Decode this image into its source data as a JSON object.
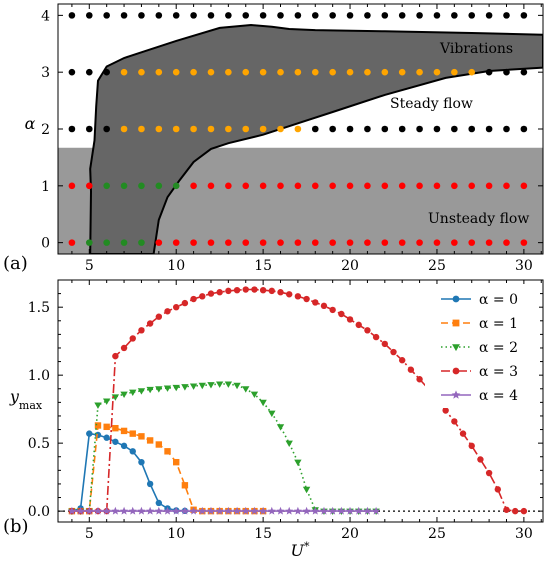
{
  "chart_data": [
    {
      "type": "scatter",
      "panel_label": "(a)",
      "xlim": [
        3.2,
        31.1
      ],
      "ylim": [
        -0.2,
        4.2
      ],
      "xticks": [
        "5",
        "10",
        "15",
        "20",
        "25",
        "30"
      ],
      "yticks": [
        "0",
        "1",
        "2",
        "3",
        "4"
      ],
      "ylabel": "α",
      "annotations": [
        "Vibrations",
        "Steady flow",
        "Unsteady flow"
      ],
      "colors": {
        "vibration_region": "#666666",
        "unsteady_band": "#999999",
        "black_points": "#000000",
        "orange_points": "#ffa500",
        "red_points": "#ff0000",
        "green_points": "#228b22"
      },
      "unsteady_band_alpha_max": 1.67,
      "vibration_boundary": [
        [
          5.05,
          -0.2
        ],
        [
          5.1,
          0.9
        ],
        [
          5.05,
          1.3
        ],
        [
          5.3,
          1.8
        ],
        [
          5.4,
          2.4
        ],
        [
          5.5,
          2.85
        ],
        [
          6.0,
          3.1
        ],
        [
          7.0,
          3.25
        ],
        [
          8.0,
          3.35
        ],
        [
          10.0,
          3.55
        ],
        [
          12.5,
          3.78
        ],
        [
          14.3,
          3.83
        ],
        [
          15.5,
          3.8
        ],
        [
          16.5,
          3.76
        ],
        [
          18.0,
          3.74
        ],
        [
          22.0,
          3.72
        ],
        [
          27.0,
          3.69
        ],
        [
          31.1,
          3.66
        ],
        [
          31.1,
          3.08
        ],
        [
          28.0,
          3.02
        ],
        [
          25.5,
          2.9
        ],
        [
          22.0,
          2.6
        ],
        [
          19.0,
          2.3
        ],
        [
          17.0,
          2.1
        ],
        [
          15.0,
          1.9
        ],
        [
          13.0,
          1.75
        ],
        [
          12.0,
          1.65
        ],
        [
          11.0,
          1.42
        ],
        [
          10.2,
          1.1
        ],
        [
          9.5,
          0.8
        ],
        [
          9.0,
          0.4
        ],
        [
          8.7,
          -0.2
        ]
      ],
      "rows": [
        {
          "alpha": 4,
          "segments": [
            {
              "color": "black",
              "x": [
                4,
                5,
                6,
                7,
                8,
                9,
                10,
                11,
                12,
                13,
                14,
                15,
                16,
                17,
                18,
                19,
                20,
                21,
                22,
                23,
                24,
                25,
                26,
                27,
                28,
                29,
                30
              ]
            }
          ]
        },
        {
          "alpha": 3,
          "segments": [
            {
              "color": "black",
              "x": [
                4,
                5,
                6
              ]
            },
            {
              "color": "orange",
              "x": [
                7,
                8,
                9,
                10,
                11,
                12,
                13,
                14,
                15,
                16,
                17,
                18,
                19,
                20,
                21,
                22,
                23,
                24,
                25,
                26,
                27
              ]
            },
            {
              "color": "black",
              "x": [
                28,
                29,
                30
              ]
            }
          ]
        },
        {
          "alpha": 2,
          "segments": [
            {
              "color": "black",
              "x": [
                4,
                5,
                6
              ]
            },
            {
              "color": "orange",
              "x": [
                7,
                8,
                9,
                10,
                11,
                12,
                13,
                14,
                15,
                16,
                17
              ]
            },
            {
              "color": "black",
              "x": [
                18,
                19,
                20,
                21,
                22,
                23,
                24,
                25,
                26,
                27,
                28,
                29,
                30
              ]
            }
          ]
        },
        {
          "alpha": 1,
          "segments": [
            {
              "color": "red",
              "x": [
                4,
                5
              ]
            },
            {
              "color": "green",
              "x": [
                6,
                7,
                8,
                9,
                10
              ]
            },
            {
              "color": "red",
              "x": [
                11,
                12,
                13,
                14,
                15,
                16,
                17,
                18,
                19,
                20,
                21,
                22,
                23,
                24,
                25,
                26,
                27,
                28,
                29,
                30
              ]
            }
          ]
        },
        {
          "alpha": 0,
          "segments": [
            {
              "color": "red",
              "x": [
                4
              ]
            },
            {
              "color": "green",
              "x": [
                5,
                6,
                7,
                8
              ]
            },
            {
              "color": "red",
              "x": [
                9,
                10,
                11,
                12,
                13,
                14,
                15,
                16,
                17,
                18,
                19,
                20,
                21,
                22,
                23,
                24,
                25,
                26,
                27,
                28,
                29,
                30
              ]
            }
          ]
        }
      ]
    },
    {
      "type": "line",
      "panel_label": "(b)",
      "xlim": [
        3.2,
        31.1
      ],
      "ylim": [
        -0.08,
        1.7
      ],
      "xticks": [
        "5",
        "10",
        "15",
        "20",
        "25",
        "30"
      ],
      "yticks": [
        "0.0",
        "0.5",
        "1.0",
        "1.5"
      ],
      "xlabel": "U*",
      "ylabel": "y_max",
      "legend_position": "top-right",
      "reference_line": {
        "y": 0,
        "style": "dotted",
        "color": "#000000"
      },
      "series": [
        {
          "name": "α = 0",
          "color": "#1f77b4",
          "dash": "",
          "marker": "circle",
          "x": [
            4,
            4.5,
            5,
            5.5,
            6,
            6.5,
            7,
            7.5,
            8,
            8.5,
            9,
            9.5,
            10,
            10.5
          ],
          "y": [
            0,
            0.02,
            0.57,
            0.56,
            0.54,
            0.51,
            0.48,
            0.44,
            0.36,
            0.2,
            0.06,
            0.02,
            0.005,
            0.002
          ]
        },
        {
          "name": "α = 1",
          "color": "#ff7f0e",
          "dash": "7 4",
          "marker": "square",
          "x": [
            4,
            4.5,
            5,
            5.5,
            6,
            6.5,
            7,
            7.5,
            8,
            8.5,
            9,
            9.5,
            10,
            10.5,
            11,
            11.5,
            12,
            12.5,
            13,
            13.5,
            14,
            14.5,
            15
          ],
          "y": [
            0,
            0,
            0,
            0.63,
            0.62,
            0.61,
            0.59,
            0.57,
            0.55,
            0.52,
            0.49,
            0.44,
            0.36,
            0.19,
            0.01,
            0,
            0,
            0,
            0,
            0,
            0,
            0,
            0
          ]
        },
        {
          "name": "α = 2",
          "color": "#2ca02c",
          "dash": "1.5 3",
          "marker": "triangle-down",
          "x": [
            4,
            4.5,
            5,
            5.5,
            6,
            6.5,
            7,
            7.5,
            8,
            8.5,
            9,
            9.5,
            10,
            10.5,
            11,
            11.5,
            12,
            12.5,
            13,
            13.5,
            14,
            14.5,
            15,
            15.5,
            16,
            16.5,
            17,
            17.5,
            18,
            18.5,
            19,
            19.5,
            20,
            20.5,
            21,
            21.5
          ],
          "y": [
            0,
            0,
            0,
            0.78,
            0.81,
            0.84,
            0.86,
            0.875,
            0.885,
            0.895,
            0.9,
            0.905,
            0.91,
            0.915,
            0.92,
            0.925,
            0.93,
            0.935,
            0.935,
            0.925,
            0.9,
            0.86,
            0.8,
            0.72,
            0.62,
            0.5,
            0.36,
            0.16,
            0.01,
            0,
            0,
            0,
            0,
            0,
            0,
            0
          ]
        },
        {
          "name": "α = 3",
          "color": "#d62728",
          "dash": "9 3 2 3",
          "marker": "circle",
          "x": [
            4,
            4.5,
            5,
            5.5,
            6,
            6.5,
            7,
            7.5,
            8,
            8.5,
            9,
            9.5,
            10,
            10.5,
            11,
            11.5,
            12,
            12.5,
            13,
            13.5,
            14,
            14.5,
            15,
            15.5,
            16,
            16.5,
            17,
            17.5,
            18,
            18.5,
            19,
            19.5,
            20,
            20.5,
            21,
            21.5,
            22,
            22.5,
            23,
            23.5,
            24,
            24.5,
            25,
            25.5,
            26,
            26.5,
            27,
            27.5,
            28,
            28.5,
            29,
            29.5,
            30
          ],
          "y": [
            0,
            0,
            0,
            0,
            0,
            1.14,
            1.2,
            1.27,
            1.33,
            1.38,
            1.43,
            1.47,
            1.5,
            1.53,
            1.56,
            1.58,
            1.6,
            1.61,
            1.62,
            1.625,
            1.63,
            1.63,
            1.625,
            1.62,
            1.61,
            1.595,
            1.58,
            1.56,
            1.535,
            1.51,
            1.48,
            1.45,
            1.41,
            1.37,
            1.33,
            1.28,
            1.23,
            1.17,
            1.11,
            1.04,
            0.97,
            0.9,
            0.82,
            0.74,
            0.66,
            0.57,
            0.48,
            0.38,
            0.28,
            0.16,
            0.01,
            0,
            0
          ]
        },
        {
          "name": "α = 4",
          "color": "#9467bd",
          "dash": "",
          "marker": "star",
          "x": [
            4,
            4.5,
            5,
            5.5,
            6,
            6.5,
            7,
            7.5,
            8,
            8.5,
            9,
            9.5,
            10,
            10.5,
            11,
            11.5,
            12,
            12.5,
            13,
            13.5,
            14,
            14.5,
            15,
            15.5,
            16,
            16.5,
            17,
            17.5,
            18,
            18.5,
            19,
            19.5,
            20,
            20.5,
            21,
            21.5
          ],
          "y": [
            0,
            0,
            0,
            0,
            0,
            0,
            0,
            0,
            0,
            0,
            0,
            0,
            0,
            0,
            0,
            0,
            0,
            0,
            0,
            0,
            0,
            0,
            0,
            0,
            0,
            0,
            0,
            0,
            0,
            0,
            0,
            0,
            0,
            0,
            0,
            0
          ]
        }
      ]
    }
  ]
}
